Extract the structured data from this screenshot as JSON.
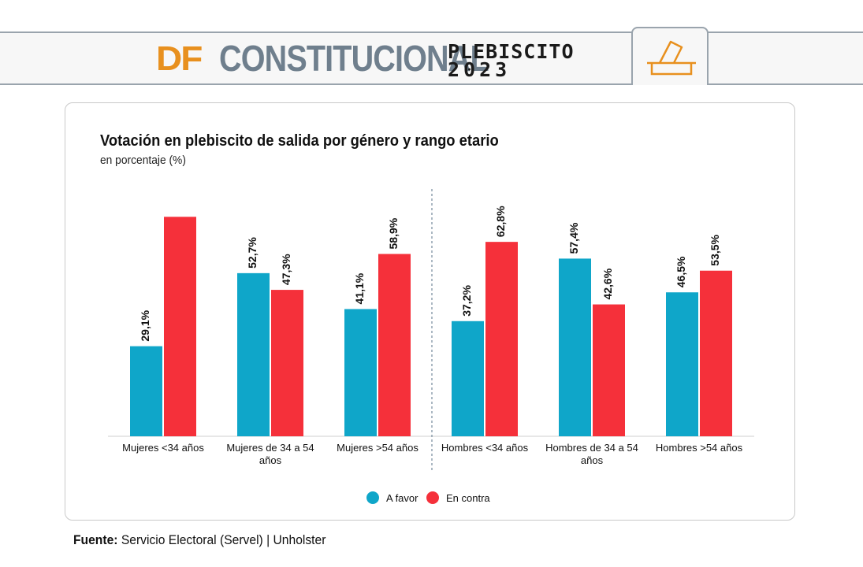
{
  "header": {
    "brand_df": "DF",
    "brand_constitucional": "CONSTITUCIONAL",
    "brand_plebiscito": "PLEBISCITO",
    "brand_year": "2023",
    "ballot_icon": "ballot-box-icon"
  },
  "colors": {
    "a_favor": "#0fa6c9",
    "en_contra": "#f5303a",
    "brand_orange": "#e8901e",
    "brand_gray": "#6f7f8d"
  },
  "chart_data": {
    "type": "bar",
    "title": "Votación en plebiscito de salida por género y rango etario",
    "subtitle": "en porcentaje (%)",
    "categories": [
      "Mujeres <34 años",
      "Mujeres de 34 a 54 años",
      "Mujeres >54 años",
      "Hombres <34 años",
      "Hombres de 34 a 54 años",
      "Hombres >54 años"
    ],
    "series": [
      {
        "name": "A favor",
        "values": [
          29.1,
          52.7,
          41.1,
          37.2,
          57.4,
          46.5
        ],
        "labels": [
          "29,1%",
          "52,7%",
          "41,1%",
          "37,2%",
          "57,4%",
          "46,5%"
        ]
      },
      {
        "name": "En contra",
        "values": [
          70.9,
          47.3,
          58.9,
          62.8,
          42.6,
          53.5
        ],
        "labels": [
          "",
          "47,3%",
          "58,9%",
          "62,8%",
          "42,6%",
          "53,5%"
        ]
      }
    ],
    "ylim": [
      0,
      100
    ],
    "grid": false,
    "legend_position": "bottom-center",
    "divider_after_category": 2
  },
  "legend": {
    "a_favor": "A favor",
    "en_contra": "En contra"
  },
  "source": {
    "label": "Fuente:",
    "text": "Servicio Electoral (Servel) | Unholster"
  }
}
